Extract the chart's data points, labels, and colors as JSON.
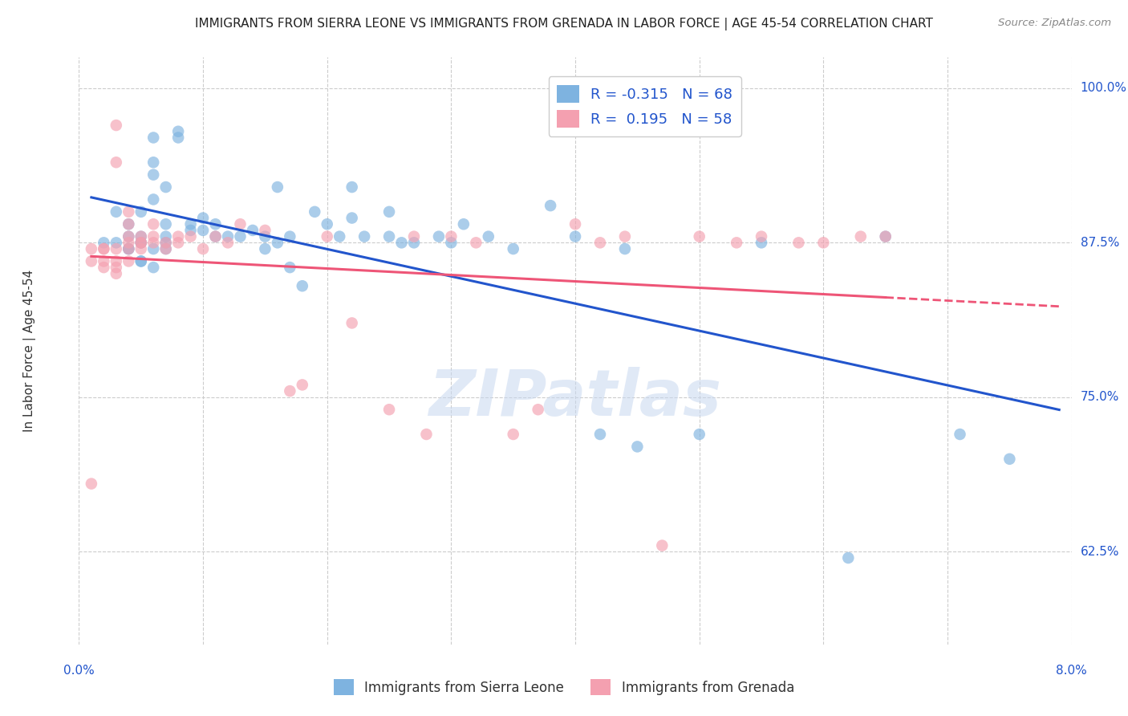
{
  "title": "IMMIGRANTS FROM SIERRA LEONE VS IMMIGRANTS FROM GRENADA IN LABOR FORCE | AGE 45-54 CORRELATION CHART",
  "source": "Source: ZipAtlas.com",
  "ylabel_label": "In Labor Force | Age 45-54",
  "legend_label_blue": "Immigrants from Sierra Leone",
  "legend_label_pink": "Immigrants from Grenada",
  "legend_text_blue": "R = -0.315   N = 68",
  "legend_text_pink": "R =  0.195   N = 58",
  "blue_color": "#7EB3E0",
  "pink_color": "#F4A0B0",
  "blue_line_color": "#2255CC",
  "pink_line_color": "#EE5577",
  "text_blue": "#2255CC",
  "grid_color": "#cccccc",
  "watermark_color": "#c8d8f0",
  "xlim": [
    0.0,
    0.08
  ],
  "ylim": [
    0.55,
    1.025
  ],
  "yticks": [
    0.625,
    0.75,
    0.875,
    1.0
  ],
  "ytick_labels": [
    "62.5%",
    "75.0%",
    "87.5%",
    "100.0%"
  ],
  "xtick_left": "0.0%",
  "xtick_right": "8.0%",
  "blue_scatter_x": [
    0.002,
    0.003,
    0.003,
    0.004,
    0.004,
    0.004,
    0.004,
    0.005,
    0.005,
    0.005,
    0.005,
    0.005,
    0.005,
    0.006,
    0.006,
    0.006,
    0.006,
    0.006,
    0.006,
    0.007,
    0.007,
    0.007,
    0.007,
    0.007,
    0.008,
    0.008,
    0.009,
    0.009,
    0.01,
    0.01,
    0.011,
    0.011,
    0.012,
    0.013,
    0.014,
    0.015,
    0.015,
    0.016,
    0.016,
    0.017,
    0.017,
    0.018,
    0.019,
    0.02,
    0.021,
    0.022,
    0.022,
    0.023,
    0.025,
    0.025,
    0.026,
    0.027,
    0.029,
    0.03,
    0.031,
    0.033,
    0.035,
    0.038,
    0.04,
    0.042,
    0.044,
    0.045,
    0.05,
    0.055,
    0.062,
    0.065,
    0.071,
    0.075
  ],
  "blue_scatter_y": [
    0.875,
    0.9,
    0.875,
    0.89,
    0.87,
    0.88,
    0.87,
    0.9,
    0.88,
    0.875,
    0.86,
    0.875,
    0.86,
    0.96,
    0.94,
    0.93,
    0.91,
    0.87,
    0.855,
    0.92,
    0.89,
    0.88,
    0.875,
    0.87,
    0.965,
    0.96,
    0.89,
    0.885,
    0.895,
    0.885,
    0.89,
    0.88,
    0.88,
    0.88,
    0.885,
    0.88,
    0.87,
    0.92,
    0.875,
    0.88,
    0.855,
    0.84,
    0.9,
    0.89,
    0.88,
    0.92,
    0.895,
    0.88,
    0.9,
    0.88,
    0.875,
    0.875,
    0.88,
    0.875,
    0.89,
    0.88,
    0.87,
    0.905,
    0.88,
    0.72,
    0.87,
    0.71,
    0.72,
    0.875,
    0.62,
    0.88,
    0.72,
    0.7
  ],
  "pink_scatter_x": [
    0.001,
    0.001,
    0.001,
    0.002,
    0.002,
    0.002,
    0.002,
    0.003,
    0.003,
    0.003,
    0.003,
    0.003,
    0.003,
    0.004,
    0.004,
    0.004,
    0.004,
    0.004,
    0.004,
    0.005,
    0.005,
    0.005,
    0.005,
    0.006,
    0.006,
    0.006,
    0.007,
    0.007,
    0.008,
    0.008,
    0.009,
    0.01,
    0.011,
    0.012,
    0.013,
    0.015,
    0.017,
    0.018,
    0.02,
    0.022,
    0.025,
    0.027,
    0.028,
    0.03,
    0.032,
    0.035,
    0.037,
    0.04,
    0.042,
    0.044,
    0.047,
    0.05,
    0.053,
    0.055,
    0.058,
    0.06,
    0.063,
    0.065
  ],
  "pink_scatter_y": [
    0.68,
    0.87,
    0.86,
    0.87,
    0.87,
    0.86,
    0.855,
    0.97,
    0.94,
    0.87,
    0.86,
    0.855,
    0.85,
    0.9,
    0.89,
    0.88,
    0.875,
    0.87,
    0.86,
    0.88,
    0.875,
    0.875,
    0.87,
    0.89,
    0.88,
    0.875,
    0.875,
    0.87,
    0.88,
    0.875,
    0.88,
    0.87,
    0.88,
    0.875,
    0.89,
    0.885,
    0.755,
    0.76,
    0.88,
    0.81,
    0.74,
    0.88,
    0.72,
    0.88,
    0.875,
    0.72,
    0.74,
    0.89,
    0.875,
    0.88,
    0.63,
    0.88,
    0.875,
    0.88,
    0.875,
    0.875,
    0.88,
    0.88
  ]
}
